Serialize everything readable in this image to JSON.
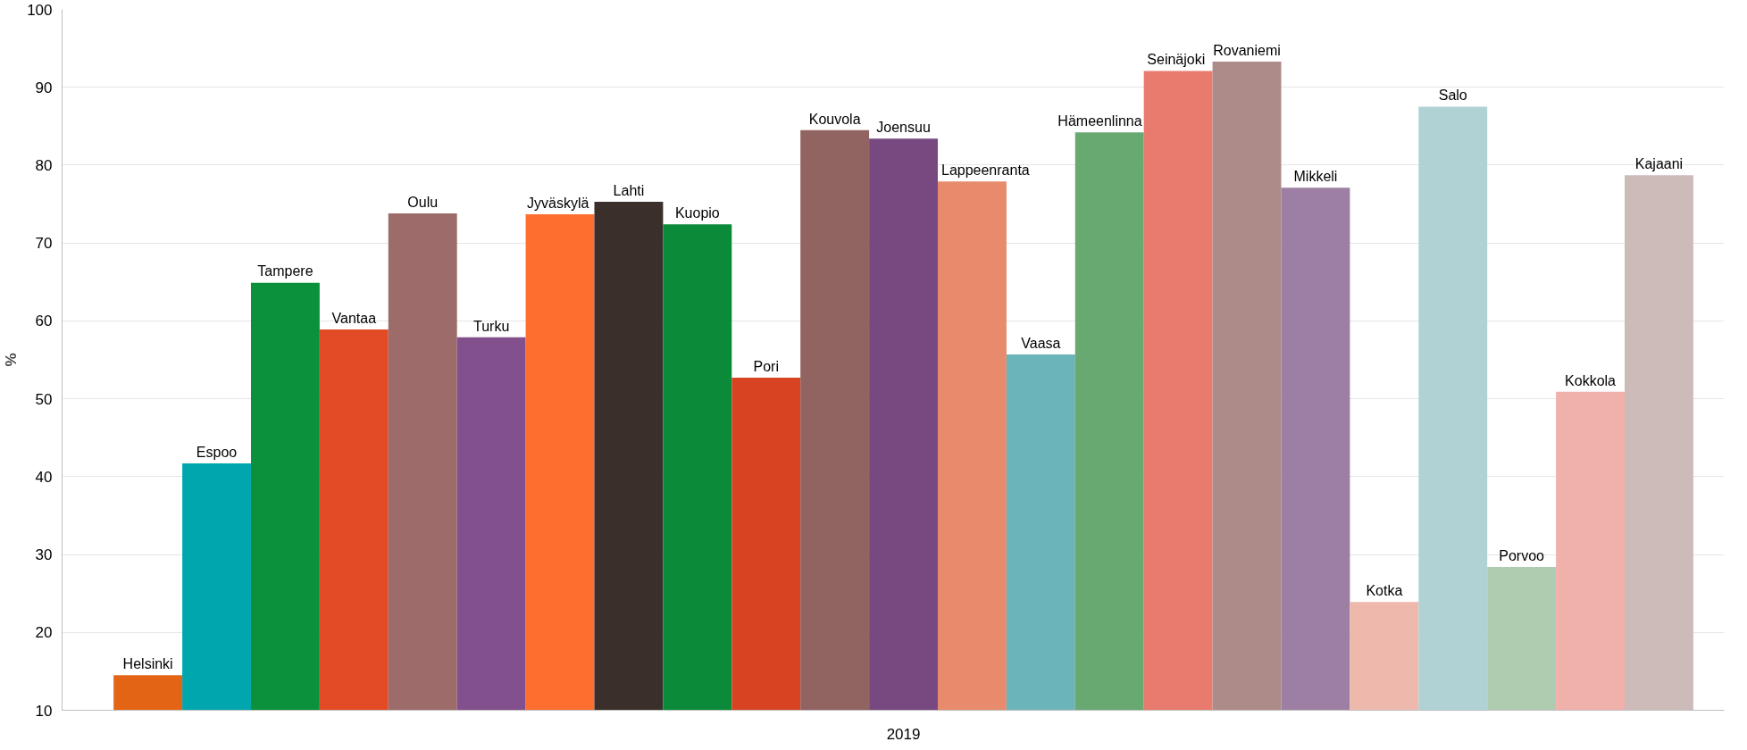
{
  "chart_data": {
    "type": "bar",
    "ylabel": "%",
    "categories": [
      "2019"
    ],
    "ylim": [
      10,
      100
    ],
    "yticks": [
      10,
      20,
      30,
      40,
      50,
      60,
      70,
      80,
      90,
      100
    ],
    "grid": "y",
    "legend": false,
    "series": [
      {
        "name": "Helsinki",
        "color": "#e36414",
        "values": [
          14.5
        ]
      },
      {
        "name": "Espoo",
        "color": "#00a6ae",
        "values": [
          41.7
        ]
      },
      {
        "name": "Tampere",
        "color": "#0b913b",
        "values": [
          64.9
        ]
      },
      {
        "name": "Vantaa",
        "color": "#e34a26",
        "values": [
          58.9
        ]
      },
      {
        "name": "Oulu",
        "color": "#9c6b6a",
        "values": [
          73.8
        ]
      },
      {
        "name": "Turku",
        "color": "#82508c",
        "values": [
          57.9
        ]
      },
      {
        "name": "Jyväskylä",
        "color": "#fe6e2e",
        "values": [
          73.7
        ]
      },
      {
        "name": "Lahti",
        "color": "#3a2f2a",
        "values": [
          75.3
        ]
      },
      {
        "name": "Kuopio",
        "color": "#0b8a3a",
        "values": [
          72.4
        ]
      },
      {
        "name": "Pori",
        "color": "#d84421",
        "values": [
          52.7
        ]
      },
      {
        "name": "Kouvola",
        "color": "#916361",
        "values": [
          84.5
        ]
      },
      {
        "name": "Joensuu",
        "color": "#784981",
        "values": [
          83.4
        ]
      },
      {
        "name": "Lappeenranta",
        "color": "#e88a6c",
        "values": [
          77.9
        ]
      },
      {
        "name": "Vaasa",
        "color": "#6bb4ba",
        "values": [
          55.7
        ]
      },
      {
        "name": "Hämeenlinna",
        "color": "#68a972",
        "values": [
          84.2
        ]
      },
      {
        "name": "Seinäjoki",
        "color": "#e97a6e",
        "values": [
          92.1
        ]
      },
      {
        "name": "Rovaniemi",
        "color": "#ad8b89",
        "values": [
          93.3
        ]
      },
      {
        "name": "Mikkeli",
        "color": "#9c7fa3",
        "values": [
          77.1
        ]
      },
      {
        "name": "Kotka",
        "color": "#efb8ac",
        "values": [
          23.9
        ]
      },
      {
        "name": "Salo",
        "color": "#b0d2d5",
        "values": [
          87.5
        ]
      },
      {
        "name": "Porvoo",
        "color": "#afcbb0",
        "values": [
          28.4
        ]
      },
      {
        "name": "Kokkola",
        "color": "#f1b1ab",
        "values": [
          50.9
        ]
      },
      {
        "name": "Kajaani",
        "color": "#cdbbba",
        "values": [
          78.7
        ]
      }
    ]
  }
}
